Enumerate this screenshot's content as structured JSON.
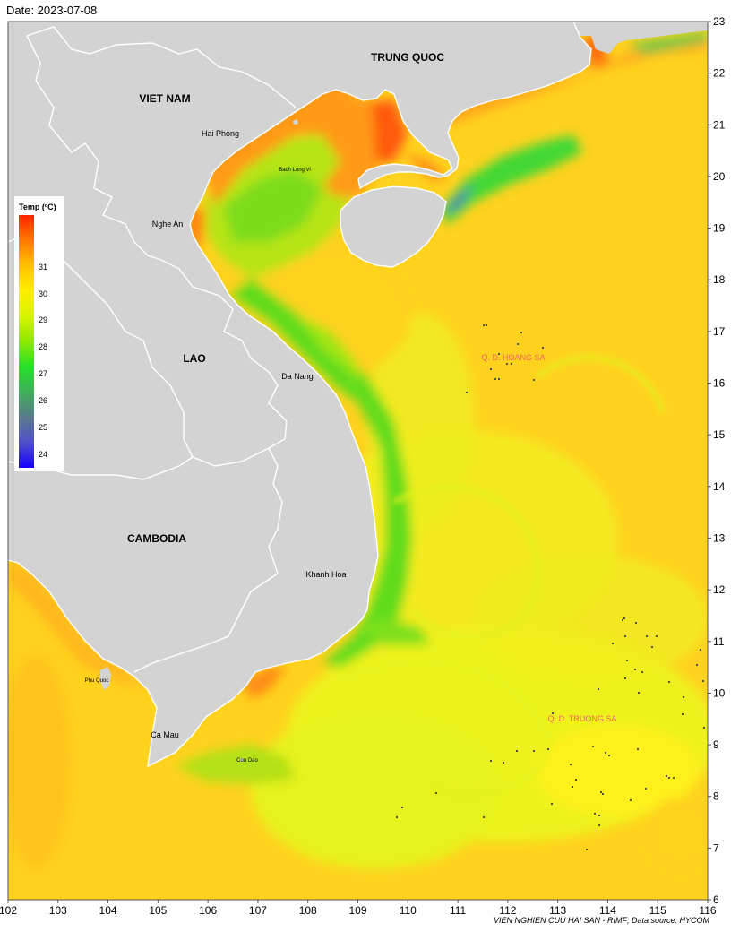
{
  "header": {
    "date_label": "Date: 2023-07-08"
  },
  "footer": {
    "credit": "VIEN NGHIEN CUU HAI SAN - RIMF; Data source: HYCOM"
  },
  "map": {
    "lon_range": [
      102,
      116
    ],
    "lat_range": [
      6,
      23
    ],
    "lon_ticks": [
      "102",
      "103",
      "104",
      "105",
      "106",
      "107",
      "108",
      "109",
      "110",
      "111",
      "112",
      "113",
      "114",
      "115",
      "116"
    ],
    "lat_ticks": [
      "6",
      "7",
      "8",
      "9",
      "10",
      "11",
      "12",
      "13",
      "14",
      "15",
      "16",
      "17",
      "18",
      "19",
      "20",
      "21",
      "22",
      "23"
    ],
    "colors": {
      "land": "#d3d3d3",
      "border": "#ffffff",
      "warm_sea": "#ffd21e",
      "cool_sea": "#e8f51e",
      "islands_label": "#f06464"
    }
  },
  "labels": {
    "countries": [
      "TRUNG QUOC",
      "VIET NAM",
      "LAO",
      "CAMBODIA"
    ],
    "places": [
      "Hai Phong",
      "Bach Long Vi",
      "Nghe An",
      "Da Nang",
      "Khanh Hoa",
      "Phu Quoc",
      "Ca Mau",
      "Con Dao"
    ],
    "islands": [
      "Q. D. HOANG SA",
      "Q. D. TRUONG SA"
    ]
  },
  "legend": {
    "title": "Temp (ºC)",
    "ticks": [
      "31",
      "30",
      "29",
      "28",
      "27",
      "26",
      "25",
      "24"
    ],
    "stops": [
      "#ff2000",
      "#ff7a00",
      "#ffc200",
      "#ffee00",
      "#d8f400",
      "#8ee800",
      "#27e02a",
      "#3fb05a",
      "#5a7a8c",
      "#5050c8",
      "#1500ff"
    ]
  }
}
